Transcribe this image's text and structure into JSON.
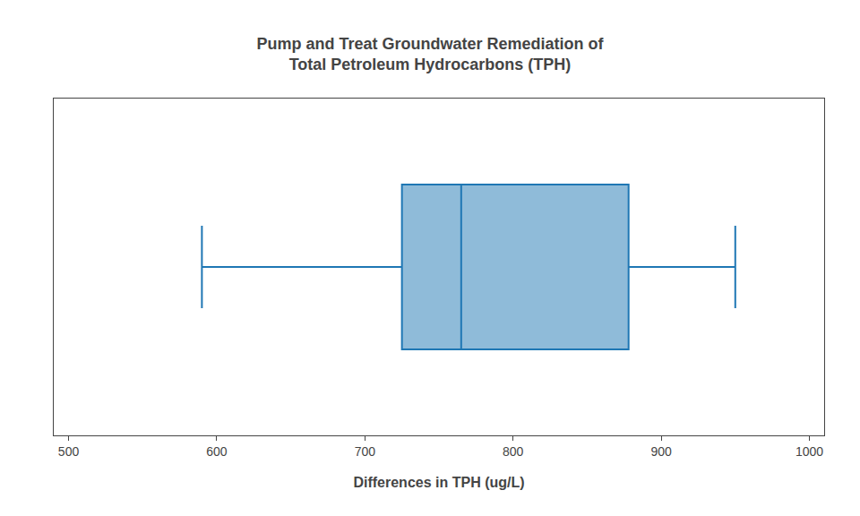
{
  "chart_data": {
    "type": "box",
    "title": "Pump and Treat Groundwater Remediation of\nTotal Petroleum Hydrocarbons (TPH)",
    "xlabel": "Differences in TPH (ug/L)",
    "q1": 725,
    "median": 765,
    "q3": 878,
    "whisker_low": 590,
    "whisker_high": 950,
    "orientation": "horizontal",
    "xlim": [
      490,
      1010
    ],
    "xticks": [
      500,
      600,
      700,
      800,
      900,
      1000
    ],
    "grid": false,
    "tick_labels": "x"
  }
}
